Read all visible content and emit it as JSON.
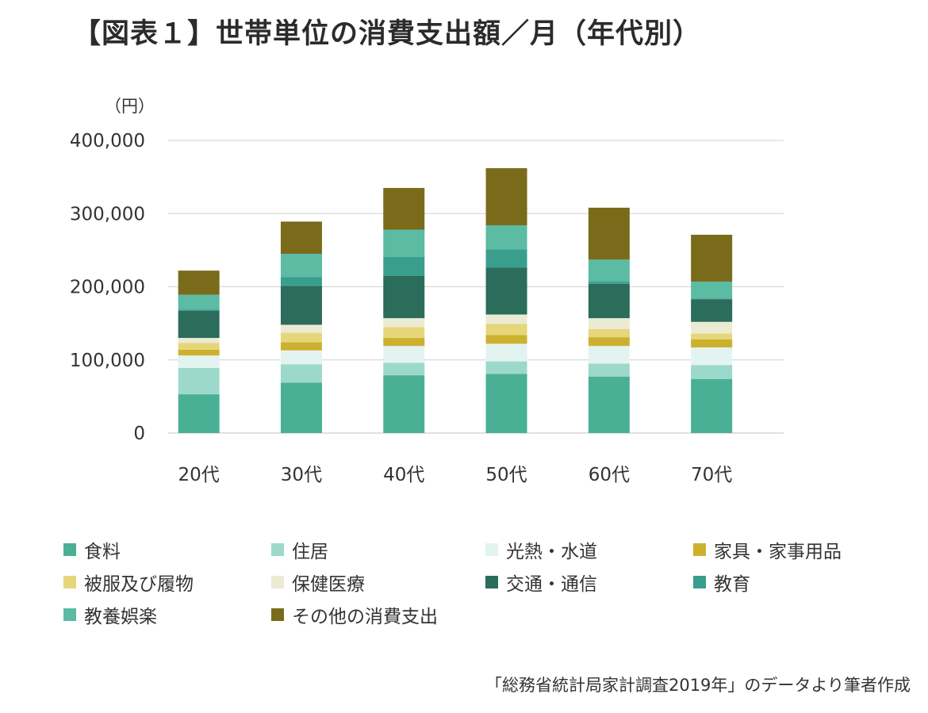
{
  "title": "【図表１】世帯単位の消費支出額／月（年代別）",
  "source_note": "「総務省統計局家計調査2019年」のデータより筆者作成",
  "chart_data": {
    "type": "bar",
    "stacked": true,
    "title": "【図表１】世帯単位の消費支出額／月（年代別）",
    "ylabel": "（円）",
    "xlabel": "",
    "ylim": [
      0,
      400000
    ],
    "yticks": [
      0,
      100000,
      200000,
      300000,
      400000
    ],
    "ytick_labels": [
      "0",
      "100,000",
      "200,000",
      "300,000",
      "400,000"
    ],
    "grid": true,
    "legend_position": "bottom",
    "categories": [
      "20代",
      "30代",
      "40代",
      "50代",
      "60代",
      "70代"
    ],
    "series": [
      {
        "name": "食料",
        "color": "#4ab095",
        "values": [
          53000,
          69000,
          79000,
          81000,
          77000,
          74000
        ]
      },
      {
        "name": "住居",
        "color": "#9dd9cb",
        "values": [
          36000,
          25000,
          17000,
          17000,
          18000,
          19000
        ]
      },
      {
        "name": "光熱・水道",
        "color": "#e3f4f0",
        "values": [
          17000,
          19000,
          23000,
          24000,
          24000,
          24000
        ]
      },
      {
        "name": "家具・家事用品",
        "color": "#ccb12f",
        "values": [
          8000,
          11000,
          11000,
          12000,
          12000,
          11000
        ]
      },
      {
        "name": "被服及び履物",
        "color": "#e6d67a",
        "values": [
          9000,
          13000,
          15000,
          15000,
          11000,
          8000
        ]
      },
      {
        "name": "保健医療",
        "color": "#ebebd3",
        "values": [
          7000,
          11000,
          12000,
          13000,
          15000,
          16000
        ]
      },
      {
        "name": "交通・通信",
        "color": "#2b6c5b",
        "values": [
          37000,
          53000,
          58000,
          64000,
          47000,
          31000
        ]
      },
      {
        "name": "教育",
        "color": "#3a9e8e",
        "values": [
          2000,
          12000,
          26000,
          25000,
          3000,
          1000
        ]
      },
      {
        "name": "教養娯楽",
        "color": "#5bbba3",
        "values": [
          20000,
          32000,
          37000,
          33000,
          30000,
          23000
        ]
      },
      {
        "name": "その他の消費支出",
        "color": "#7a6b1b",
        "values": [
          33000,
          44000,
          57000,
          78000,
          71000,
          64000
        ]
      }
    ]
  }
}
